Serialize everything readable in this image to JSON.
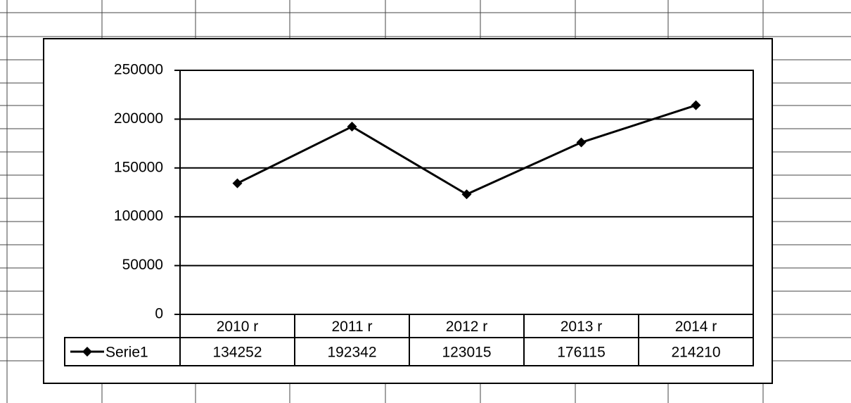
{
  "chart_data": {
    "type": "line",
    "categories": [
      "2010 r",
      "2011 r",
      "2012 r",
      "2013 r",
      "2014 r"
    ],
    "series": [
      {
        "name": "Serie1",
        "color": "#000000",
        "values": [
          134252,
          192342,
          123015,
          176115,
          214210
        ]
      }
    ],
    "ylim": [
      0,
      250000
    ],
    "yticks": [
      0,
      50000,
      100000,
      150000,
      200000,
      250000
    ],
    "grid": true
  }
}
